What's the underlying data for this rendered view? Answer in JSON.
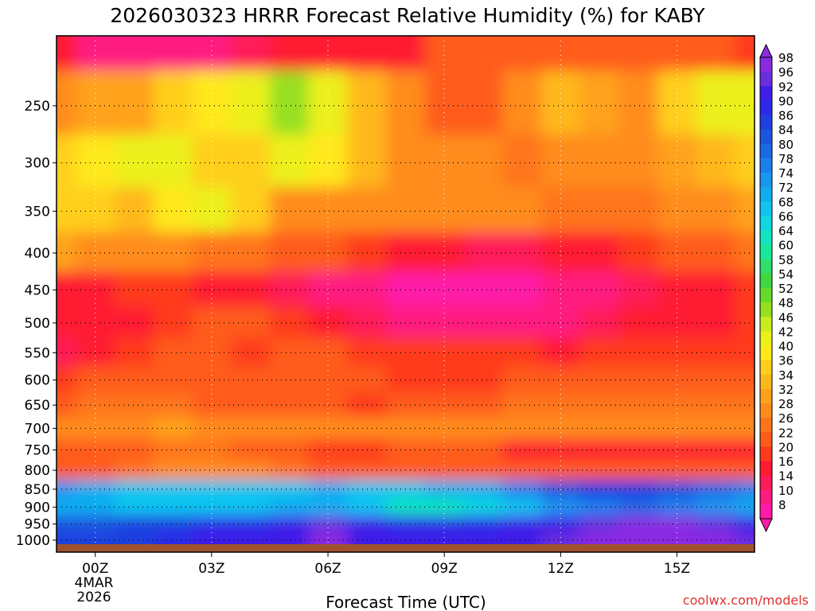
{
  "chart_data": {
    "type": "heatmap",
    "title": "2026030323 HRRR Forecast Relative Humidity (%) for KABY",
    "xlabel": "Forecast Time (UTC)",
    "ylabel": "",
    "x_tick_labels": [
      "00Z",
      "03Z",
      "06Z",
      "09Z",
      "12Z",
      "15Z"
    ],
    "x_date_label_lines": [
      "4MAR",
      "2026"
    ],
    "x_hours": [
      -1,
      0,
      1,
      2,
      3,
      4,
      5,
      6,
      7,
      8,
      9,
      10,
      11,
      12,
      13,
      14,
      15,
      16,
      17
    ],
    "xlim": [
      -1,
      17
    ],
    "y_tick_labels": [
      "250",
      "300",
      "350",
      "400",
      "450",
      "500",
      "550",
      "600",
      "650",
      "700",
      "750",
      "800",
      "850",
      "900",
      "950",
      "1000"
    ],
    "y_levels": [
      200,
      250,
      300,
      350,
      400,
      450,
      500,
      550,
      600,
      650,
      700,
      750,
      800,
      850,
      900,
      950,
      1000
    ],
    "ylim": [
      1013,
      200
    ],
    "y_scale": "log-pressure",
    "grid": true,
    "colorbar_labels": [
      "98",
      "96",
      "92",
      "90",
      "86",
      "84",
      "80",
      "78",
      "74",
      "72",
      "68",
      "66",
      "64",
      "60",
      "58",
      "54",
      "52",
      "48",
      "46",
      "42",
      "40",
      "36",
      "34",
      "32",
      "28",
      "26",
      "22",
      "20",
      "16",
      "14",
      "10",
      "8"
    ],
    "colorbar_colors": [
      "#8a2be2",
      "#6a2ee0",
      "#3f1fe8",
      "#2a2ae8",
      "#1f3fe0",
      "#1a55e0",
      "#1a6ae6",
      "#1a80ee",
      "#1a96f0",
      "#10adf0",
      "#10c4f0",
      "#10d8e0",
      "#10e6c0",
      "#18e89a",
      "#2ee06a",
      "#40d840",
      "#66dc2a",
      "#96e020",
      "#c8ec1c",
      "#ecf01a",
      "#ffe81a",
      "#ffcf1a",
      "#ffb81a",
      "#ffa21a",
      "#ff8c1a",
      "#ff741a",
      "#ff5c1a",
      "#ff3a1a",
      "#ff1a30",
      "#ff1a58",
      "#ff1a80",
      "#ff1aa8"
    ],
    "rh_values": [
      [
        16,
        12,
        10,
        10,
        12,
        14,
        16,
        18,
        16,
        18,
        22,
        22,
        24,
        24,
        22,
        22,
        22,
        22,
        20
      ],
      [
        30,
        32,
        32,
        38,
        40,
        42,
        48,
        44,
        34,
        28,
        22,
        24,
        30,
        34,
        32,
        30,
        36,
        42,
        44
      ],
      [
        38,
        40,
        44,
        42,
        36,
        38,
        42,
        40,
        34,
        30,
        30,
        30,
        26,
        28,
        28,
        30,
        32,
        34,
        36
      ],
      [
        38,
        36,
        34,
        40,
        44,
        36,
        30,
        30,
        30,
        30,
        28,
        28,
        28,
        26,
        26,
        26,
        28,
        30,
        32
      ],
      [
        32,
        30,
        30,
        28,
        26,
        26,
        24,
        22,
        20,
        18,
        16,
        14,
        14,
        16,
        18,
        20,
        22,
        24,
        26
      ],
      [
        18,
        18,
        20,
        20,
        18,
        16,
        14,
        12,
        10,
        8,
        8,
        8,
        8,
        10,
        12,
        14,
        16,
        18,
        20
      ],
      [
        18,
        16,
        18,
        20,
        22,
        22,
        20,
        18,
        14,
        12,
        12,
        12,
        12,
        12,
        14,
        16,
        18,
        18,
        20
      ],
      [
        14,
        16,
        20,
        22,
        22,
        20,
        22,
        22,
        20,
        20,
        20,
        20,
        20,
        18,
        20,
        20,
        20,
        20,
        20
      ],
      [
        20,
        22,
        22,
        22,
        24,
        24,
        22,
        24,
        22,
        20,
        20,
        20,
        22,
        24,
        22,
        22,
        22,
        22,
        22
      ],
      [
        24,
        26,
        26,
        26,
        24,
        24,
        24,
        22,
        20,
        22,
        24,
        24,
        26,
        26,
        26,
        26,
        26,
        26,
        26
      ],
      [
        28,
        28,
        30,
        32,
        30,
        28,
        30,
        30,
        28,
        28,
        28,
        28,
        30,
        30,
        30,
        30,
        30,
        30,
        28
      ],
      [
        22,
        22,
        24,
        26,
        26,
        24,
        22,
        20,
        20,
        22,
        24,
        22,
        18,
        16,
        16,
        16,
        16,
        16,
        18
      ],
      [
        24,
        24,
        26,
        28,
        28,
        28,
        26,
        24,
        24,
        24,
        24,
        24,
        22,
        22,
        22,
        22,
        22,
        22,
        22
      ],
      [
        74,
        72,
        70,
        68,
        68,
        70,
        70,
        72,
        70,
        70,
        72,
        72,
        78,
        84,
        86,
        86,
        84,
        80,
        78
      ],
      [
        72,
        72,
        70,
        68,
        70,
        70,
        72,
        72,
        68,
        64,
        64,
        66,
        70,
        74,
        78,
        80,
        78,
        76,
        72
      ],
      [
        84,
        84,
        86,
        88,
        90,
        90,
        92,
        96,
        92,
        90,
        90,
        90,
        92,
        94,
        96,
        98,
        98,
        96,
        92
      ],
      [
        86,
        86,
        88,
        90,
        92,
        92,
        94,
        98,
        94,
        92,
        92,
        92,
        94,
        96,
        98,
        98,
        98,
        98,
        96
      ]
    ]
  },
  "credit": "coolwx.com/models"
}
